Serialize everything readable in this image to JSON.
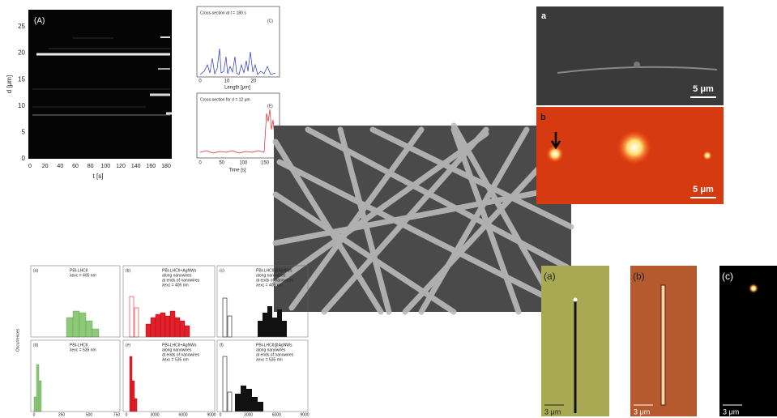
{
  "kymograph": {
    "label": "(A)",
    "y_axis": "d [μm]",
    "yticks": [
      0,
      5,
      10,
      15,
      20,
      25
    ],
    "x_axis": "t [s]",
    "xticks": [
      0,
      20,
      40,
      60,
      80,
      100,
      120,
      140,
      160,
      180
    ]
  },
  "cross_section_c": {
    "title": "Cross-section at t = 180 s",
    "label": "(C)",
    "x_axis": "Length [μm]",
    "xticks": [
      0,
      10,
      20
    ]
  },
  "cross_section_e": {
    "title": "Cross-section for d = 12 μm",
    "label": "(E)",
    "x_axis": "Time [s]",
    "xticks": [
      0,
      50,
      100,
      150
    ]
  },
  "sem_top": {
    "label": "a",
    "scale": "5 μm"
  },
  "fluorescence": {
    "label": "b",
    "scale": "5 μm"
  },
  "histograms": {
    "y_axis": "Occurrences",
    "panels": [
      {
        "label": "(a)",
        "lines": [
          "PBI-LHCII",
          "λexc = 405 nm"
        ]
      },
      {
        "label": "(b)",
        "lines": [
          "PBI-LHCII+AgNWs",
          "along nanowires",
          "at ends of nanowires",
          "λexc = 405 nm"
        ]
      },
      {
        "label": "(c)",
        "lines": [
          "PBI-LHCII@AgNWs",
          "along nanowires",
          "at ends of nanowires",
          "λexc = 405 nm"
        ]
      },
      {
        "label": "(d)",
        "lines": [
          "PBI-LHCII",
          "λexc = 535 nm"
        ]
      },
      {
        "label": "(e)",
        "lines": [
          "PBI-LHCII+AgNWs",
          "along nanowires",
          "at ends of nanowires",
          "λexc = 535 nm"
        ]
      },
      {
        "label": "(f)",
        "lines": [
          "PBI-LHCII@AgNWs",
          "along nanowires",
          "at ends of nanowires",
          "λexc = 535 nm"
        ]
      }
    ],
    "xticks": [
      [
        0,
        250,
        500,
        750
      ],
      [
        0,
        3000,
        6000,
        9000
      ],
      [
        0,
        3000,
        6000,
        9000
      ]
    ]
  },
  "optical": [
    {
      "label": "(a)",
      "scale": "3 μm"
    },
    {
      "label": "(b)",
      "scale": "3 μm"
    },
    {
      "label": "(c)",
      "scale": "3 μm"
    }
  ]
}
